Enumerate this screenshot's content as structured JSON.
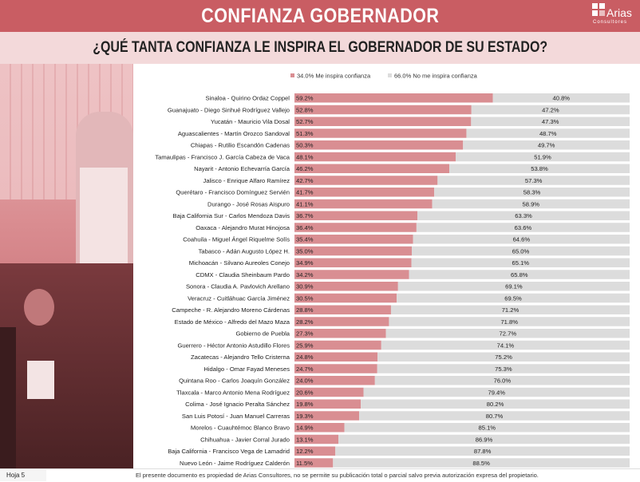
{
  "header": {
    "title": "CONFIANZA GOBERNADOR"
  },
  "question": "¿QUÉ TANTA CONFIANZA LE INSPIRA EL GOBERNADOR DE SU ESTADO?",
  "logo": {
    "word": "Arias",
    "sub": "Consultores",
    "color": "#ffffff"
  },
  "footer": {
    "page": "Hoja 5",
    "note": "El presente documento es propiedad de Arias Consultores, no se permite su publicación total o parcial salvo previa autorización expresa del propietario."
  },
  "colors": {
    "accent": "#c95d63",
    "band": "#f3d9da",
    "inspira": "#d98e92",
    "no_inspira": "#dcdcdc"
  },
  "chart_data": {
    "type": "bar",
    "orientation": "horizontal",
    "stacked": true,
    "legend_position": "top",
    "series": [
      {
        "name": "34.0% Me inspira confianza",
        "color": "#d98e92",
        "values": [
          59.2,
          52.8,
          52.7,
          51.3,
          50.3,
          48.1,
          46.2,
          42.7,
          41.7,
          41.1,
          36.7,
          36.4,
          35.4,
          35.0,
          34.9,
          34.2,
          30.9,
          30.5,
          28.8,
          28.2,
          27.3,
          25.9,
          24.8,
          24.7,
          24.0,
          20.6,
          19.8,
          19.3,
          14.9,
          13.1,
          12.2,
          11.5
        ],
        "labels": [
          "59.2%",
          "52.8%",
          "52.7%",
          "51.3%",
          "50.3%",
          "48.1%",
          "46.2%",
          "42.7%",
          "41.7%",
          "41.1%",
          "36.7%",
          "36.4%",
          "35.4%",
          "35.0%",
          "34.9%",
          "34.2%",
          "30.9%",
          "30.5%",
          "28.8%",
          "28.2%",
          "27.3%",
          "25.9%",
          "24.8%",
          "24.7%",
          "24.0%",
          "20.6%",
          "19.8%",
          "19.3%",
          "14.9%",
          "13.1%",
          "12.2%",
          "11.5%"
        ]
      },
      {
        "name": "66.0% No me inspira confianza",
        "color": "#dcdcdc",
        "values": [
          40.8,
          47.2,
          47.3,
          48.7,
          49.7,
          51.9,
          53.8,
          57.3,
          58.3,
          58.9,
          63.3,
          63.6,
          64.6,
          65.0,
          65.1,
          65.8,
          69.1,
          69.5,
          71.2,
          71.8,
          72.7,
          74.1,
          75.2,
          75.3,
          76.0,
          79.4,
          80.2,
          80.7,
          85.1,
          86.9,
          87.8,
          88.5
        ],
        "labels": [
          "40.8%",
          "47.2%",
          "47.3%",
          "48.7%",
          "49.7%",
          "51.9%",
          "53.8%",
          "57.3%",
          "58.3%",
          "58.9%",
          "63.3%",
          "63.6%",
          "64.6%",
          "65.0%",
          "65.1%",
          "65.8%",
          "69.1%",
          "69.5%",
          "71.2%",
          "71.8%",
          "72.7%",
          "74.1%",
          "75.2%",
          "75.3%",
          "76.0%",
          "79.4%",
          "80.2%",
          "80.7%",
          "85.1%",
          "86.9%",
          "87.8%",
          "88.5%"
        ]
      }
    ],
    "categories": [
      "Sinaloa - Quirino Ordaz Coppel",
      "Guanajuato - Diego Sinhué Rodríguez Vallejo",
      "Yucatán - Mauricio Vila Dosal",
      "Aguascalientes - Martín Orozco Sandoval",
      "Chiapas - Rutilio Escandón Cadenas",
      "Tamaulipas - Francisco J. García Cabeza de Vaca",
      "Nayarit - Antonio Echevarría García",
      "Jalisco - Enrique Alfaro Ramírez",
      "Querétaro - Francisco Domínguez Servién",
      "Durango - José Rosas Aispuro",
      "Baja California Sur - Carlos Mendoza Davis",
      "Oaxaca - Alejandro Murat Hinojosa",
      "Coahuila - Miguel Ángel Riquelme Solís",
      "Tabasco - Adán Augusto López H.",
      "Michoacán - Silvano Aureoles Conejo",
      "CDMX - Claudia Sheinbaum Pardo",
      "Sonora - Claudia A. Pavlovich Arellano",
      "Veracruz - Cuitláhuac García Jiménez",
      "Campeche - R. Alejandro Moreno Cárdenas",
      "Estado de México - Alfredo del Mazo Maza",
      "Gobierno de Puebla",
      "Guerrero - Héctor Antonio Astudillo Flores",
      "Zacatecas - Alejandro Tello Cristerna",
      "Hidalgo - Omar Fayad Meneses",
      "Quintana Roo - Carlos Joaquín González",
      "Tlaxcala - Marco Antonio Mena Rodríguez",
      "Colima - José Ignacio Peralta Sánchez",
      "San Luis Potosí - Juan Manuel Carreras",
      "Morelos - Cuauhtémoc Blanco Bravo",
      "Chihuahua - Javier Corral Jurado",
      "Baja California - Francisco Vega de Lamadrid",
      "Nuevo León - Jaime Rodríguez Calderón"
    ],
    "xlim": [
      0,
      100
    ]
  }
}
